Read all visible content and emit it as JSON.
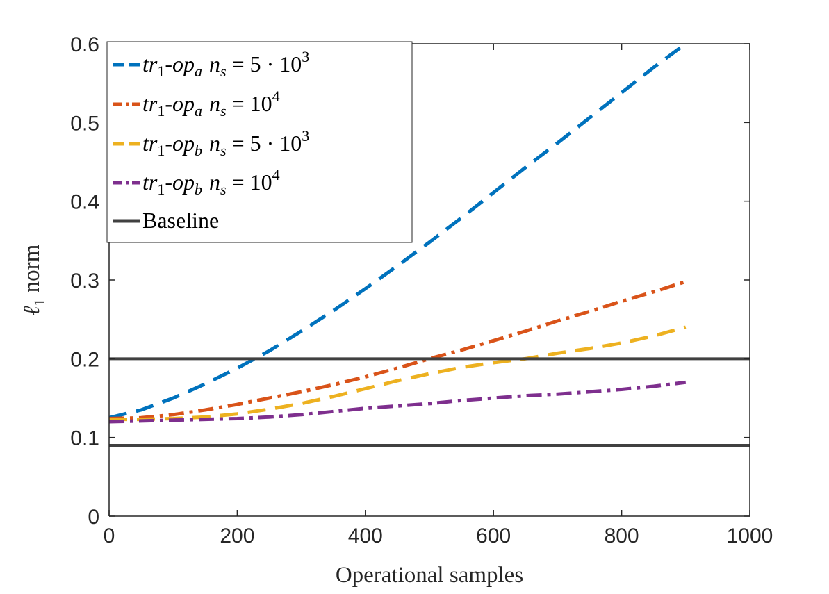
{
  "chart_data": {
    "type": "line",
    "title": "",
    "xlabel": "Operational samples",
    "ylabel_main": "ℓ",
    "ylabel_sub": "1",
    "ylabel_rest": " norm",
    "xlim": [
      0,
      1000
    ],
    "ylim": [
      0,
      0.6
    ],
    "xticks": [
      0,
      200,
      400,
      600,
      800,
      1000
    ],
    "xtick_labels": [
      "0",
      "200",
      "400",
      "600",
      "800",
      "1000"
    ],
    "yticks": [
      0,
      0.1,
      0.2,
      0.3,
      0.4,
      0.5,
      0.6
    ],
    "ytick_labels": [
      "0",
      "0.1",
      "0.2",
      "0.3",
      "0.4",
      "0.5",
      "0.6"
    ],
    "legend_position": "top-left",
    "series": [
      {
        "name": "tr1-opa ns = 5·10^3",
        "color": "#0072BD",
        "style": "dash",
        "x": [
          0,
          50,
          100,
          150,
          200,
          250,
          300,
          350,
          400,
          450,
          500,
          550,
          600,
          650,
          700,
          750,
          800,
          850,
          900
        ],
        "y": [
          0.125,
          0.135,
          0.15,
          0.168,
          0.188,
          0.21,
          0.235,
          0.261,
          0.289,
          0.318,
          0.348,
          0.379,
          0.411,
          0.443,
          0.474,
          0.506,
          0.538,
          0.57,
          0.6
        ]
      },
      {
        "name": "tr1-opa ns = 10^4",
        "color": "#D95319",
        "style": "dashdot",
        "x": [
          0,
          50,
          100,
          150,
          200,
          250,
          300,
          350,
          400,
          450,
          500,
          550,
          600,
          650,
          700,
          750,
          800,
          850,
          900
        ],
        "y": [
          0.124,
          0.125,
          0.129,
          0.135,
          0.142,
          0.15,
          0.158,
          0.167,
          0.177,
          0.188,
          0.2,
          0.211,
          0.223,
          0.235,
          0.248,
          0.26,
          0.273,
          0.285,
          0.298
        ]
      },
      {
        "name": "tr1-opb ns = 5·10^3",
        "color": "#EDB120",
        "style": "dash",
        "x": [
          0,
          50,
          100,
          150,
          200,
          250,
          300,
          350,
          400,
          450,
          500,
          550,
          600,
          650,
          700,
          750,
          800,
          850,
          900
        ],
        "y": [
          0.123,
          0.123,
          0.124,
          0.126,
          0.13,
          0.136,
          0.143,
          0.152,
          0.162,
          0.172,
          0.181,
          0.189,
          0.195,
          0.2,
          0.207,
          0.213,
          0.22,
          0.229,
          0.24
        ]
      },
      {
        "name": "tr1-opb ns = 10^4",
        "color": "#7E2F8E",
        "style": "dashdot",
        "x": [
          0,
          50,
          100,
          150,
          200,
          250,
          300,
          350,
          400,
          450,
          500,
          550,
          600,
          650,
          700,
          750,
          800,
          850,
          900
        ],
        "y": [
          0.12,
          0.121,
          0.122,
          0.123,
          0.124,
          0.126,
          0.129,
          0.133,
          0.137,
          0.14,
          0.143,
          0.147,
          0.15,
          0.153,
          0.155,
          0.158,
          0.161,
          0.165,
          0.17
        ]
      },
      {
        "name": "Baseline",
        "color": "#404040",
        "style": "solid",
        "hlines": [
          0.2,
          0.09
        ]
      }
    ],
    "legend": [
      {
        "a": "tr",
        "b": "1",
        "c": "-",
        "d": "op",
        "e": "a",
        "f": "n",
        "g": "s",
        "h": " = 5 · 10",
        "i": "3"
      },
      {
        "a": "tr",
        "b": "1",
        "c": "-",
        "d": "op",
        "e": "a",
        "f": "n",
        "g": "s",
        "h": " = 10",
        "i": "4"
      },
      {
        "a": "tr",
        "b": "1",
        "c": "-",
        "d": "op",
        "e": "b",
        "f": "n",
        "g": "s",
        "h": " = 5 · 10",
        "i": "3"
      },
      {
        "a": "tr",
        "b": "1",
        "c": "-",
        "d": "op",
        "e": "b",
        "f": "n",
        "g": "s",
        "h": " = 10",
        "i": "4"
      },
      {
        "label": "Baseline"
      }
    ]
  }
}
